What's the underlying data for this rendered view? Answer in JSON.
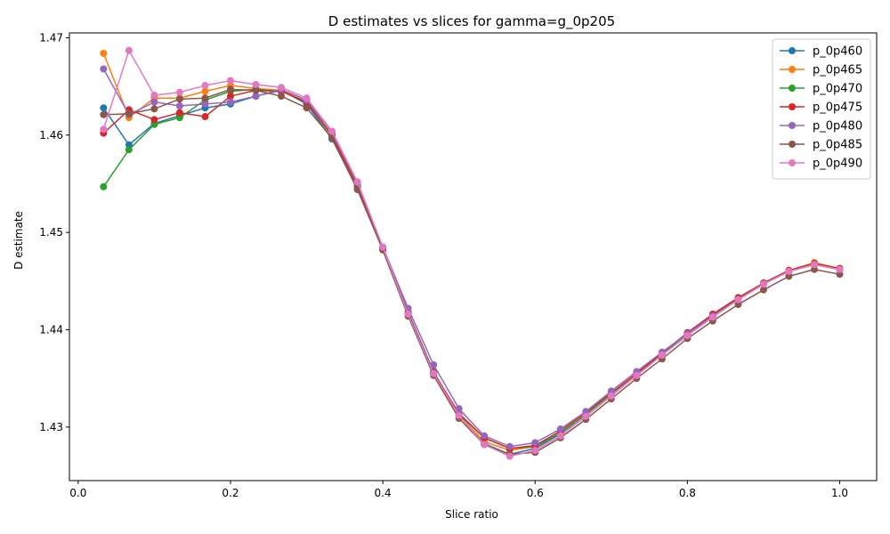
{
  "chart_data": {
    "type": "line",
    "title": "D estimates vs slices for gamma=g_0p205",
    "xlabel": "Slice ratio",
    "ylabel": "D estimate",
    "xlim": [
      -0.0,
      1.05
    ],
    "ylim": [
      1.4245,
      1.4705
    ],
    "xticks": [
      0.0,
      0.2,
      0.4,
      0.6,
      0.8,
      1.0
    ],
    "xtick_labels": [
      "0.0",
      "0.2",
      "0.4",
      "0.6",
      "0.8",
      "1.0"
    ],
    "yticks": [
      1.43,
      1.44,
      1.45,
      1.46,
      1.47
    ],
    "ytick_labels": [
      "1.43",
      "1.44",
      "1.45",
      "1.46",
      "1.47"
    ],
    "grid": false,
    "legend_position": "top-right",
    "x": [
      0.0333,
      0.0667,
      0.1,
      0.1333,
      0.1667,
      0.2,
      0.2333,
      0.2667,
      0.3,
      0.3333,
      0.3667,
      0.4,
      0.4333,
      0.4667,
      0.5,
      0.5333,
      0.5667,
      0.6,
      0.6333,
      0.6667,
      0.7,
      0.7333,
      0.7667,
      0.8,
      0.8333,
      0.8667,
      0.9,
      0.9333,
      0.9667,
      1.0
    ],
    "series": [
      {
        "name": "p_0p460",
        "color": "#1f77b4",
        "values": [
          1.4628,
          1.459,
          1.4612,
          1.462,
          1.4628,
          1.4632,
          1.464,
          1.4646,
          1.4632,
          1.4596,
          1.4545,
          1.4484,
          1.4418,
          1.4357,
          1.4312,
          1.4283,
          1.4272,
          1.4278,
          1.4293,
          1.4313,
          1.4334,
          1.4355,
          1.4375,
          1.4396,
          1.4414,
          1.4431,
          1.4447,
          1.446,
          1.4467,
          1.4462
        ]
      },
      {
        "name": "p_0p465",
        "color": "#ff7f0e",
        "values": [
          1.4684,
          1.4618,
          1.4638,
          1.4638,
          1.4645,
          1.4651,
          1.4648,
          1.4646,
          1.4634,
          1.46,
          1.4548,
          1.4484,
          1.4416,
          1.4355,
          1.4312,
          1.4285,
          1.4276,
          1.428,
          1.4294,
          1.4313,
          1.4334,
          1.4355,
          1.4376,
          1.4396,
          1.4415,
          1.4432,
          1.4448,
          1.4461,
          1.4469,
          1.4463
        ]
      },
      {
        "name": "p_0p470",
        "color": "#2ca02c",
        "values": [
          1.4547,
          1.4585,
          1.4611,
          1.4618,
          1.4636,
          1.4645,
          1.4647,
          1.4645,
          1.4634,
          1.4599,
          1.4547,
          1.4484,
          1.4416,
          1.4356,
          1.4313,
          1.4289,
          1.4278,
          1.428,
          1.4294,
          1.4313,
          1.4334,
          1.4355,
          1.4376,
          1.4396,
          1.4415,
          1.4432,
          1.4448,
          1.4461,
          1.4468,
          1.4462
        ]
      },
      {
        "name": "p_0p475",
        "color": "#d62728",
        "values": [
          1.4602,
          1.4626,
          1.4616,
          1.4623,
          1.4619,
          1.464,
          1.4646,
          1.4645,
          1.4634,
          1.46,
          1.4548,
          1.4484,
          1.4417,
          1.4356,
          1.4314,
          1.4289,
          1.4278,
          1.4281,
          1.4296,
          1.4315,
          1.4335,
          1.4355,
          1.4376,
          1.4397,
          1.4416,
          1.4433,
          1.4448,
          1.4461,
          1.4468,
          1.4463
        ]
      },
      {
        "name": "p_0p480",
        "color": "#9467bd",
        "values": [
          1.4668,
          1.4621,
          1.4634,
          1.463,
          1.4632,
          1.4634,
          1.464,
          1.4647,
          1.4636,
          1.4603,
          1.455,
          1.4485,
          1.4422,
          1.4364,
          1.4319,
          1.4291,
          1.428,
          1.4284,
          1.4298,
          1.4316,
          1.4337,
          1.4357,
          1.4377,
          1.4396,
          1.4414,
          1.4431,
          1.4447,
          1.446,
          1.4467,
          1.4462
        ]
      },
      {
        "name": "p_0p485",
        "color": "#8c564b",
        "values": [
          1.4621,
          1.4622,
          1.4627,
          1.4637,
          1.4638,
          1.4647,
          1.4646,
          1.464,
          1.4628,
          1.4597,
          1.4544,
          1.4482,
          1.4414,
          1.4353,
          1.4309,
          1.4282,
          1.4272,
          1.4274,
          1.4289,
          1.4308,
          1.4329,
          1.435,
          1.437,
          1.4391,
          1.4409,
          1.4426,
          1.4441,
          1.4455,
          1.4462,
          1.4457
        ]
      },
      {
        "name": "p_0p490",
        "color": "#e377c2",
        "values": [
          1.4606,
          1.4687,
          1.4641,
          1.4644,
          1.4651,
          1.4656,
          1.4652,
          1.4649,
          1.4638,
          1.4604,
          1.4552,
          1.4485,
          1.4416,
          1.4355,
          1.4312,
          1.4282,
          1.427,
          1.4276,
          1.4291,
          1.4311,
          1.4332,
          1.4353,
          1.4374,
          1.4394,
          1.4413,
          1.4431,
          1.4447,
          1.446,
          1.4467,
          1.4462
        ]
      }
    ]
  }
}
